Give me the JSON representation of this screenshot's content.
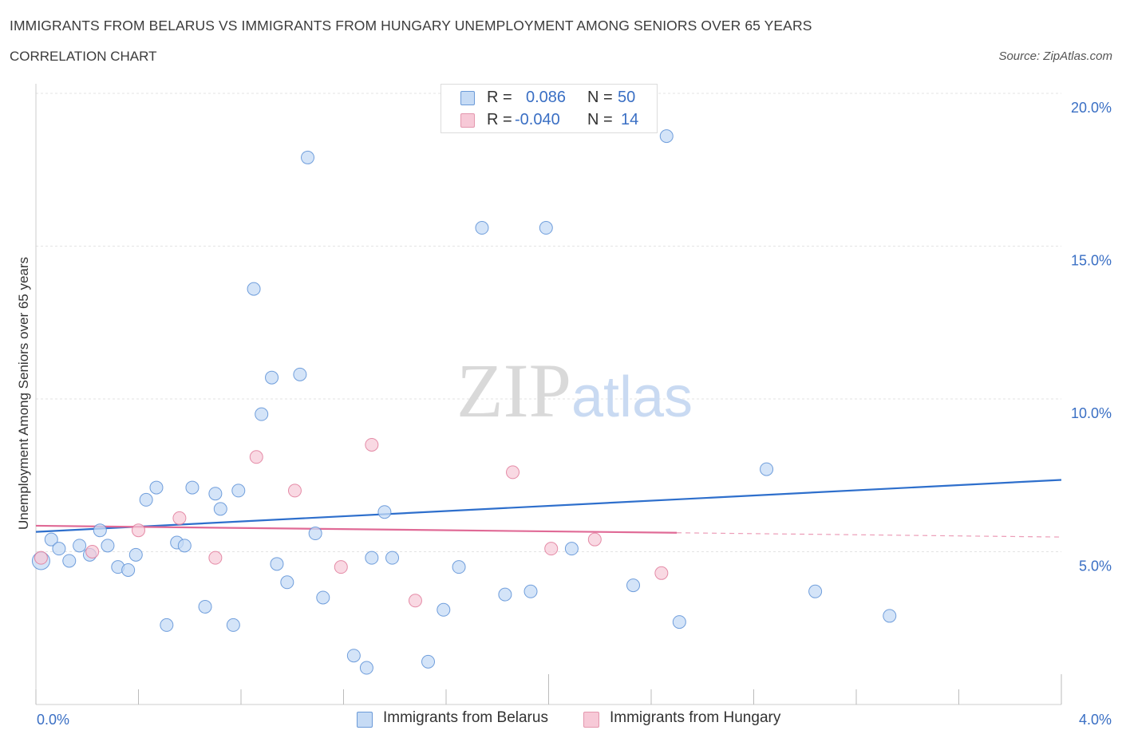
{
  "chart_data": {
    "type": "scatter",
    "title": "IMMIGRANTS FROM BELARUS VS IMMIGRANTS FROM HUNGARY UNEMPLOYMENT AMONG SENIORS OVER 65 YEARS",
    "subtitle": "CORRELATION CHART",
    "source": "Source: ZipAtlas.com",
    "xlabel": "",
    "ylabel": "Unemployment Among Seniors over 65 years",
    "xlim": [
      0,
      4.0
    ],
    "ylim": [
      0,
      20.0
    ],
    "x_tick_labels": [
      "0.0%",
      "4.0%"
    ],
    "y_ticks": [
      5.0,
      10.0,
      15.0,
      20.0
    ],
    "y_tick_labels": [
      "5.0%",
      "10.0%",
      "15.0%",
      "20.0%"
    ],
    "watermark": "ZIPatlas",
    "stats": [
      {
        "r_label": "R =",
        "r_value": "0.086",
        "n_label": "N =",
        "n_value": "50"
      },
      {
        "r_label": "R =",
        "r_value": "-0.040",
        "n_label": "N =",
        "n_value": "14"
      }
    ],
    "series": [
      {
        "name": "Immigrants from Belarus",
        "color": "#5b8fd6",
        "fill": "#c6dbf5",
        "points": [
          [
            0.02,
            4.7
          ],
          [
            0.06,
            5.4
          ],
          [
            0.09,
            5.1
          ],
          [
            0.13,
            4.7
          ],
          [
            0.17,
            5.2
          ],
          [
            0.21,
            4.9
          ],
          [
            0.25,
            5.7
          ],
          [
            0.28,
            5.2
          ],
          [
            0.32,
            4.5
          ],
          [
            0.36,
            4.4
          ],
          [
            0.39,
            4.9
          ],
          [
            0.43,
            6.7
          ],
          [
            0.47,
            7.1
          ],
          [
            0.51,
            2.6
          ],
          [
            0.55,
            5.3
          ],
          [
            0.58,
            5.2
          ],
          [
            0.61,
            7.1
          ],
          [
            0.66,
            3.2
          ],
          [
            0.7,
            6.9
          ],
          [
            0.72,
            6.4
          ],
          [
            0.77,
            2.6
          ],
          [
            0.79,
            7.0
          ],
          [
            0.85,
            13.6
          ],
          [
            0.88,
            9.5
          ],
          [
            0.92,
            10.7
          ],
          [
            0.94,
            4.6
          ],
          [
            0.98,
            4.0
          ],
          [
            1.03,
            10.8
          ],
          [
            1.06,
            17.9
          ],
          [
            1.09,
            5.6
          ],
          [
            1.12,
            3.5
          ],
          [
            1.24,
            1.6
          ],
          [
            1.29,
            1.2
          ],
          [
            1.31,
            4.8
          ],
          [
            1.36,
            6.3
          ],
          [
            1.39,
            4.8
          ],
          [
            1.53,
            1.4
          ],
          [
            1.59,
            3.1
          ],
          [
            1.65,
            4.5
          ],
          [
            1.74,
            15.6
          ],
          [
            1.83,
            3.6
          ],
          [
            1.93,
            3.7
          ],
          [
            1.99,
            15.6
          ],
          [
            2.09,
            5.1
          ],
          [
            2.33,
            3.9
          ],
          [
            2.46,
            18.6
          ],
          [
            2.51,
            2.7
          ],
          [
            2.85,
            7.7
          ],
          [
            3.04,
            3.7
          ],
          [
            3.33,
            2.9
          ]
        ],
        "trend": [
          [
            0.0,
            5.65
          ],
          [
            4.0,
            7.35
          ]
        ]
      },
      {
        "name": "Immigrants from Hungary",
        "color": "#e07a9a",
        "fill": "#f7c9d7",
        "points": [
          [
            0.02,
            4.8
          ],
          [
            0.22,
            5.0
          ],
          [
            0.4,
            5.7
          ],
          [
            0.56,
            6.1
          ],
          [
            0.7,
            4.8
          ],
          [
            0.86,
            8.1
          ],
          [
            1.01,
            7.0
          ],
          [
            1.19,
            4.5
          ],
          [
            1.31,
            8.5
          ],
          [
            1.48,
            3.4
          ],
          [
            1.86,
            7.6
          ],
          [
            2.01,
            5.1
          ],
          [
            2.18,
            5.4
          ],
          [
            2.44,
            4.3
          ]
        ],
        "trend": [
          [
            0.0,
            5.85
          ],
          [
            2.5,
            5.62
          ]
        ],
        "trend_dashed": [
          [
            2.5,
            5.62
          ],
          [
            4.0,
            5.48
          ]
        ]
      }
    ]
  }
}
